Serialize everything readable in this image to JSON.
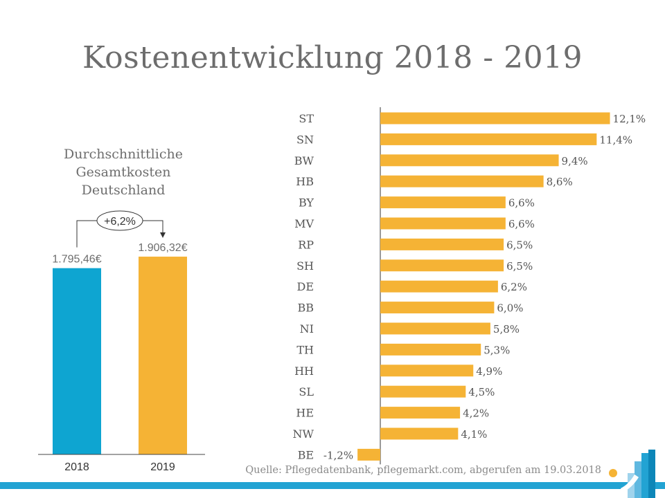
{
  "title": "Kostenentwicklung 2018 - 2019",
  "left_chart_title": [
    "Durchschnittliche",
    "Gesamtkosten",
    "Deutschland"
  ],
  "source": "Quelle: Pflegedatenbank, pflegemarkt.com, abgerufen am 19.03.2018",
  "colors": {
    "blue": "#0ea5d1",
    "orange": "#f5b335",
    "text": "#6d6d6d",
    "axis": "#333333",
    "footer": "#22a3d3"
  },
  "chart_data": [
    {
      "type": "bar",
      "title": "Durchschnittliche Gesamtkosten Deutschland",
      "categories": [
        "2018",
        "2019"
      ],
      "values": [
        1795.46,
        1906.32
      ],
      "labels": [
        "1.795,46€",
        "1.906,32€"
      ],
      "bar_colors": [
        "#0ea5d1",
        "#f5b335"
      ],
      "annotation": "+6,2%",
      "ylim": [
        0,
        2950
      ],
      "grid": false
    },
    {
      "type": "bar",
      "orientation": "horizontal",
      "title": "Kostenentwicklung 2018 - 2019",
      "categories": [
        "ST",
        "SN",
        "BW",
        "HB",
        "BY",
        "MV",
        "RP",
        "SH",
        "DE",
        "BB",
        "NI",
        "TH",
        "HH",
        "SL",
        "HE",
        "NW",
        "BE"
      ],
      "values": [
        12.1,
        11.4,
        9.4,
        8.6,
        6.6,
        6.6,
        6.5,
        6.5,
        6.2,
        6.0,
        5.8,
        5.3,
        4.9,
        4.5,
        4.2,
        4.1,
        -1.2
      ],
      "labels": [
        "12,1%",
        "11,4%",
        "9,4%",
        "8,6%",
        "6,6%",
        "6,6%",
        "6,5%",
        "6,5%",
        "6,2%",
        "6,0%",
        "5,8%",
        "5,3%",
        "4,9%",
        "4,5%",
        "4,2%",
        "4,1%",
        "-1,2%"
      ],
      "unit": "%",
      "xlim": [
        -1.2,
        12.1
      ],
      "grid": false
    }
  ]
}
